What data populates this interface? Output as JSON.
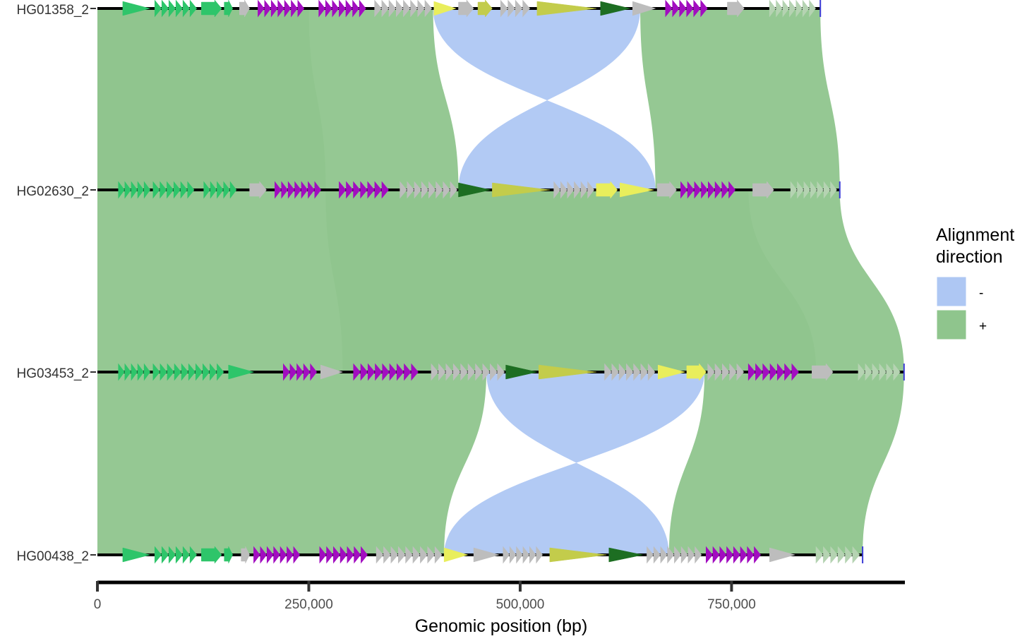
{
  "chart_data": {
    "type": "genome-alignment",
    "xlabel": "Genomic position (bp)",
    "xlim": [
      0,
      955000
    ],
    "x_ticks": [
      {
        "value": 0,
        "label": "0"
      },
      {
        "value": 250000,
        "label": "250,000"
      },
      {
        "value": 500000,
        "label": "500,000"
      },
      {
        "value": 750000,
        "label": "750,000"
      }
    ],
    "legend": {
      "title_line1": "Alignment",
      "title_line2": "direction",
      "placement": "right",
      "items": [
        {
          "label": "-",
          "color": "#AEC7F3"
        },
        {
          "label": "+",
          "color": "#8FC58D"
        }
      ]
    },
    "colors": {
      "plus": "#8FC58D",
      "minus": "#AEC7F3",
      "overlap_minus": "#7AAEC2",
      "overlap_plus": "#66AA8C",
      "track": "#000000",
      "gene_green": "#2EC56A",
      "gene_magenta": "#A20DC0",
      "gene_grey": "#BDBDBD",
      "gene_yellow": "#E9EE5C",
      "gene_olive": "#C3CC4B",
      "gene_darkgreen": "#1D6E22",
      "gene_pale": "#B5D3B2"
    },
    "tracks": [
      {
        "name": "HG01358_2",
        "length": 855000
      },
      {
        "name": "HG02630_2",
        "length": 878000
      },
      {
        "name": "HG03453_2",
        "length": 954000
      },
      {
        "name": "HG00438_2",
        "length": 905000
      }
    ],
    "alignments": [
      {
        "from": 0,
        "to": 1,
        "dir": "+",
        "a": [
          0,
          397000
        ],
        "b": [
          0,
          427000
        ]
      },
      {
        "from": 0,
        "to": 1,
        "dir": "-",
        "a": [
          397000,
          642000
        ],
        "b": [
          427000,
          660000
        ]
      },
      {
        "from": 0,
        "to": 1,
        "dir": "+",
        "a": [
          642000,
          855000
        ],
        "b": [
          660000,
          878000
        ]
      },
      {
        "from": 0,
        "to": 1,
        "dir": "+",
        "a": [
          0,
          250000
        ],
        "b": [
          0,
          270000
        ]
      },
      {
        "from": 1,
        "to": 2,
        "dir": "+",
        "a": [
          0,
          878000
        ],
        "b": [
          0,
          954000
        ]
      },
      {
        "from": 1,
        "to": 2,
        "dir": "+",
        "a": [
          270000,
          770000
        ],
        "b": [
          290000,
          850000
        ]
      },
      {
        "from": 2,
        "to": 3,
        "dir": "+",
        "a": [
          0,
          460000
        ],
        "b": [
          0,
          410000
        ]
      },
      {
        "from": 2,
        "to": 3,
        "dir": "-",
        "a": [
          460000,
          718000
        ],
        "b": [
          410000,
          676000
        ]
      },
      {
        "from": 2,
        "to": 3,
        "dir": "+",
        "a": [
          718000,
          954000
        ],
        "b": [
          676000,
          905000
        ]
      }
    ],
    "genes": [
      [
        {
          "s": 30000,
          "e": 62000,
          "c": "gene_green"
        },
        {
          "s": 68000,
          "e": 118000,
          "c": "gene_green"
        },
        {
          "s": 123000,
          "e": 147000,
          "c": "gene_green"
        },
        {
          "s": 150000,
          "e": 160000,
          "c": "gene_green"
        },
        {
          "s": 168000,
          "e": 180000,
          "c": "gene_grey"
        },
        {
          "s": 190000,
          "e": 245000,
          "c": "gene_magenta"
        },
        {
          "s": 262000,
          "e": 318000,
          "c": "gene_magenta"
        },
        {
          "s": 328000,
          "e": 396000,
          "c": "gene_grey"
        },
        {
          "s": 398000,
          "e": 424000,
          "c": "gene_yellow"
        },
        {
          "s": 427000,
          "e": 445000,
          "c": "gene_grey"
        },
        {
          "s": 450000,
          "e": 467000,
          "c": "gene_olive"
        },
        {
          "s": 477000,
          "e": 512000,
          "c": "gene_grey"
        },
        {
          "s": 520000,
          "e": 590000,
          "c": "gene_olive"
        },
        {
          "s": 595000,
          "e": 630000,
          "c": "gene_darkgreen"
        },
        {
          "s": 633000,
          "e": 660000,
          "c": "gene_grey"
        },
        {
          "s": 672000,
          "e": 722000,
          "c": "gene_magenta"
        },
        {
          "s": 745000,
          "e": 765000,
          "c": "gene_grey"
        },
        {
          "s": 795000,
          "e": 850000,
          "c": "gene_pale"
        }
      ],
      [
        {
          "s": 25000,
          "e": 63000,
          "c": "gene_green"
        },
        {
          "s": 66000,
          "e": 115000,
          "c": "gene_green"
        },
        {
          "s": 126000,
          "e": 165000,
          "c": "gene_green"
        },
        {
          "s": 180000,
          "e": 200000,
          "c": "gene_grey"
        },
        {
          "s": 210000,
          "e": 265000,
          "c": "gene_magenta"
        },
        {
          "s": 286000,
          "e": 345000,
          "c": "gene_magenta"
        },
        {
          "s": 358000,
          "e": 426000,
          "c": "gene_grey"
        },
        {
          "s": 427000,
          "e": 465000,
          "c": "gene_darkgreen"
        },
        {
          "s": 467000,
          "e": 535000,
          "c": "gene_olive"
        },
        {
          "s": 540000,
          "e": 588000,
          "c": "gene_grey"
        },
        {
          "s": 590000,
          "e": 615000,
          "c": "gene_yellow"
        },
        {
          "s": 618000,
          "e": 658000,
          "c": "gene_yellow"
        },
        {
          "s": 662000,
          "e": 685000,
          "c": "gene_grey"
        },
        {
          "s": 690000,
          "e": 755000,
          "c": "gene_magenta"
        },
        {
          "s": 775000,
          "e": 800000,
          "c": "gene_grey"
        },
        {
          "s": 820000,
          "e": 875000,
          "c": "gene_pale"
        }
      ],
      [
        {
          "s": 25000,
          "e": 63000,
          "c": "gene_green"
        },
        {
          "s": 66000,
          "e": 150000,
          "c": "gene_green"
        },
        {
          "s": 155000,
          "e": 185000,
          "c": "gene_green"
        },
        {
          "s": 220000,
          "e": 260000,
          "c": "gene_magenta"
        },
        {
          "s": 264000,
          "e": 290000,
          "c": "gene_grey"
        },
        {
          "s": 303000,
          "e": 380000,
          "c": "gene_magenta"
        },
        {
          "s": 395000,
          "e": 482000,
          "c": "gene_grey"
        },
        {
          "s": 483000,
          "e": 520000,
          "c": "gene_darkgreen"
        },
        {
          "s": 522000,
          "e": 590000,
          "c": "gene_olive"
        },
        {
          "s": 600000,
          "e": 660000,
          "c": "gene_grey"
        },
        {
          "s": 663000,
          "e": 695000,
          "c": "gene_yellow"
        },
        {
          "s": 697000,
          "e": 720000,
          "c": "gene_yellow"
        },
        {
          "s": 722000,
          "e": 765000,
          "c": "gene_grey"
        },
        {
          "s": 770000,
          "e": 830000,
          "c": "gene_magenta"
        },
        {
          "s": 845000,
          "e": 870000,
          "c": "gene_grey"
        },
        {
          "s": 900000,
          "e": 950000,
          "c": "gene_pale"
        }
      ],
      [
        {
          "s": 30000,
          "e": 62000,
          "c": "gene_green"
        },
        {
          "s": 68000,
          "e": 118000,
          "c": "gene_green"
        },
        {
          "s": 123000,
          "e": 147000,
          "c": "gene_green"
        },
        {
          "s": 150000,
          "e": 160000,
          "c": "gene_green"
        },
        {
          "s": 170000,
          "e": 180000,
          "c": "gene_grey"
        },
        {
          "s": 185000,
          "e": 240000,
          "c": "gene_magenta"
        },
        {
          "s": 263000,
          "e": 320000,
          "c": "gene_magenta"
        },
        {
          "s": 330000,
          "e": 408000,
          "c": "gene_grey"
        },
        {
          "s": 410000,
          "e": 438000,
          "c": "gene_yellow"
        },
        {
          "s": 445000,
          "e": 475000,
          "c": "gene_grey"
        },
        {
          "s": 480000,
          "e": 527000,
          "c": "gene_grey"
        },
        {
          "s": 535000,
          "e": 602000,
          "c": "gene_olive"
        },
        {
          "s": 605000,
          "e": 645000,
          "c": "gene_darkgreen"
        },
        {
          "s": 650000,
          "e": 715000,
          "c": "gene_grey"
        },
        {
          "s": 720000,
          "e": 785000,
          "c": "gene_magenta"
        },
        {
          "s": 795000,
          "e": 825000,
          "c": "gene_grey"
        },
        {
          "s": 850000,
          "e": 902000,
          "c": "gene_pale"
        }
      ]
    ]
  }
}
